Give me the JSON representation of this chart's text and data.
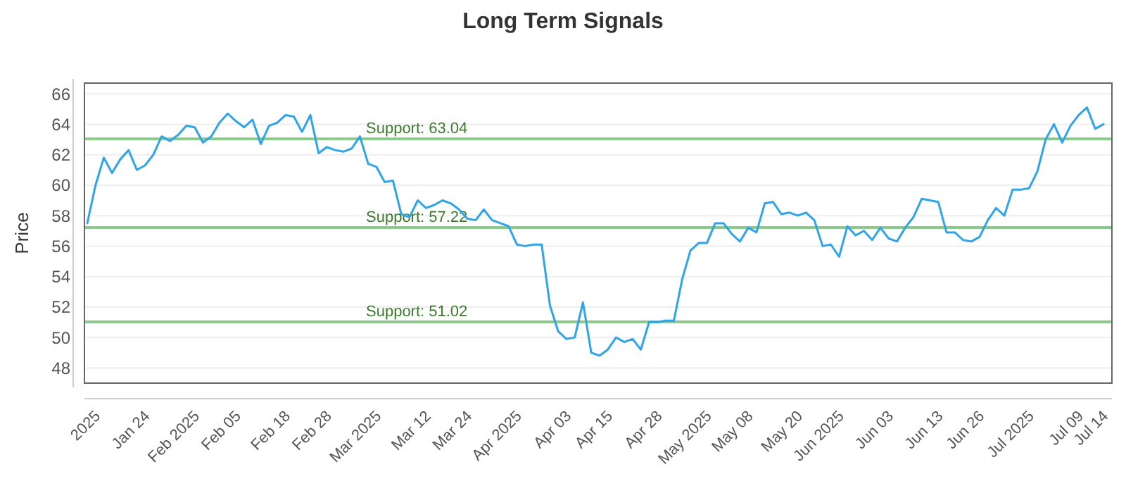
{
  "chart_data": {
    "type": "line",
    "title": "Long Term Signals",
    "ylabel": "Price",
    "categories": [
      null,
      "2025",
      null,
      null,
      null,
      null,
      null,
      "Jan 24",
      null,
      null,
      null,
      null,
      null,
      "Feb 2025",
      null,
      null,
      null,
      null,
      "Feb 05",
      null,
      null,
      null,
      null,
      null,
      "Feb 18",
      null,
      null,
      null,
      null,
      "Feb 28",
      null,
      null,
      null,
      null,
      null,
      "Mar 2025",
      null,
      null,
      null,
      null,
      null,
      "Mar 12",
      null,
      null,
      null,
      null,
      "Mar 24",
      null,
      null,
      null,
      null,
      null,
      "Apr 2025",
      null,
      null,
      null,
      null,
      null,
      "Apr 03",
      null,
      null,
      null,
      null,
      "Apr 15",
      null,
      null,
      null,
      null,
      null,
      "Apr 28",
      null,
      null,
      null,
      null,
      null,
      "May 2025",
      null,
      null,
      null,
      null,
      "May 08",
      null,
      null,
      null,
      null,
      null,
      "May 20",
      null,
      null,
      null,
      null,
      "Jun 2025",
      null,
      null,
      null,
      null,
      null,
      "Jun 03",
      null,
      null,
      null,
      null,
      null,
      "Jun 13",
      null,
      null,
      null,
      null,
      "Jun 26",
      null,
      null,
      null,
      null,
      null,
      "Jul 2025",
      null,
      null,
      null,
      null,
      null,
      "Jul 09",
      null,
      null,
      "Jul 14"
    ],
    "series": [
      {
        "color": "#2fa4e7",
        "values": [
          57.5,
          60.0,
          61.8,
          60.8,
          61.7,
          62.3,
          61.0,
          61.3,
          62.0,
          63.2,
          62.9,
          63.3,
          63.9,
          63.8,
          62.8,
          63.2,
          64.1,
          64.7,
          64.2,
          63.8,
          64.3,
          62.7,
          63.9,
          64.1,
          64.6,
          64.5,
          63.5,
          64.6,
          62.1,
          62.5,
          62.3,
          62.2,
          62.4,
          63.2,
          61.4,
          61.2,
          60.2,
          60.3,
          58.1,
          57.9,
          59.0,
          58.5,
          58.7,
          59.0,
          58.8,
          58.4,
          57.8,
          57.7,
          58.4,
          57.7,
          57.5,
          57.3,
          56.1,
          56.0,
          56.1,
          56.1,
          52.1,
          50.4,
          49.9,
          50.0,
          52.3,
          49.0,
          48.8,
          49.2,
          50.0,
          49.7,
          49.9,
          49.2,
          51.0,
          51.0,
          51.1,
          51.1,
          53.8,
          55.7,
          56.2,
          56.2,
          57.5,
          57.5,
          56.8,
          56.3,
          57.2,
          56.9,
          58.8,
          58.9,
          58.1,
          58.2,
          58.0,
          58.2,
          57.7,
          56.0,
          56.1,
          55.3,
          57.3,
          56.7,
          57.0,
          56.4,
          57.2,
          56.5,
          56.3,
          57.2,
          57.9,
          59.1,
          59.0,
          58.9,
          56.9,
          56.9,
          56.4,
          56.3,
          56.6,
          57.7,
          58.5,
          58.0,
          59.7,
          59.7,
          59.8,
          60.9,
          63.0,
          64.0,
          62.8,
          63.9,
          64.6,
          65.1,
          63.7,
          64.0
        ]
      }
    ],
    "ylim": [
      47,
      66.7
    ],
    "yticks": [
      48,
      50,
      52,
      54,
      56,
      58,
      60,
      62,
      64,
      66
    ],
    "grid": "y",
    "ref_lines": [
      {
        "axis": "y",
        "value": 63.04,
        "label": "Support: 63.04",
        "color": "#8cc98c"
      },
      {
        "axis": "y",
        "value": 57.22,
        "label": "Support: 57.22",
        "color": "#8cc98c"
      },
      {
        "axis": "y",
        "value": 51.02,
        "label": "Support: 51.02",
        "color": "#8cc98c"
      }
    ]
  }
}
